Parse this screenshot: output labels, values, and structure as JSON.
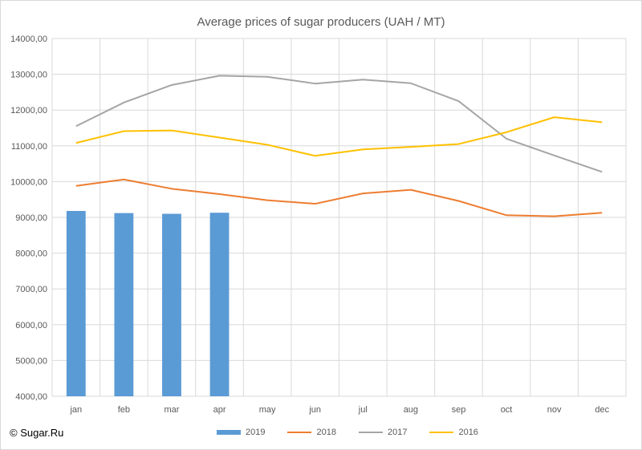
{
  "source": "© Sugar.Ru",
  "chart_data": {
    "type": "bar+line",
    "title": "Average prices of sugar producers (UAH / MT)",
    "xlabel": "",
    "ylabel": "",
    "categories": [
      "jan",
      "feb",
      "mar",
      "apr",
      "may",
      "jun",
      "jul",
      "aug",
      "sep",
      "oct",
      "nov",
      "dec"
    ],
    "ylim": [
      4000,
      14000
    ],
    "yticks": [
      "4000,00",
      "5000,00",
      "6000,00",
      "7000,00",
      "8000,00",
      "9000,00",
      "10000,00",
      "11000,00",
      "12000,00",
      "13000,00",
      "14000,00"
    ],
    "ytick_values": [
      4000,
      5000,
      6000,
      7000,
      8000,
      9000,
      10000,
      11000,
      12000,
      13000,
      14000
    ],
    "grid": true,
    "legend_position": "bottom",
    "series": [
      {
        "name": "2019",
        "type": "bar",
        "color": "#5b9bd5",
        "values": [
          9180,
          9120,
          9100,
          9130,
          null,
          null,
          null,
          null,
          null,
          null,
          null,
          null
        ]
      },
      {
        "name": "2018",
        "type": "line",
        "color": "#ed7d31",
        "values": [
          9880,
          10060,
          9800,
          9650,
          9480,
          9380,
          9670,
          9770,
          9460,
          9060,
          9030,
          9130
        ]
      },
      {
        "name": "2017",
        "type": "line",
        "color": "#a5a5a5",
        "values": [
          11550,
          12210,
          12700,
          12960,
          12930,
          12740,
          12850,
          12750,
          12250,
          11200,
          10730,
          10270
        ]
      },
      {
        "name": "2016",
        "type": "line",
        "color": "#ffc000",
        "values": [
          11080,
          11410,
          11430,
          11230,
          11030,
          10720,
          10900,
          10970,
          11050,
          11380,
          11800,
          11660
        ]
      }
    ]
  }
}
